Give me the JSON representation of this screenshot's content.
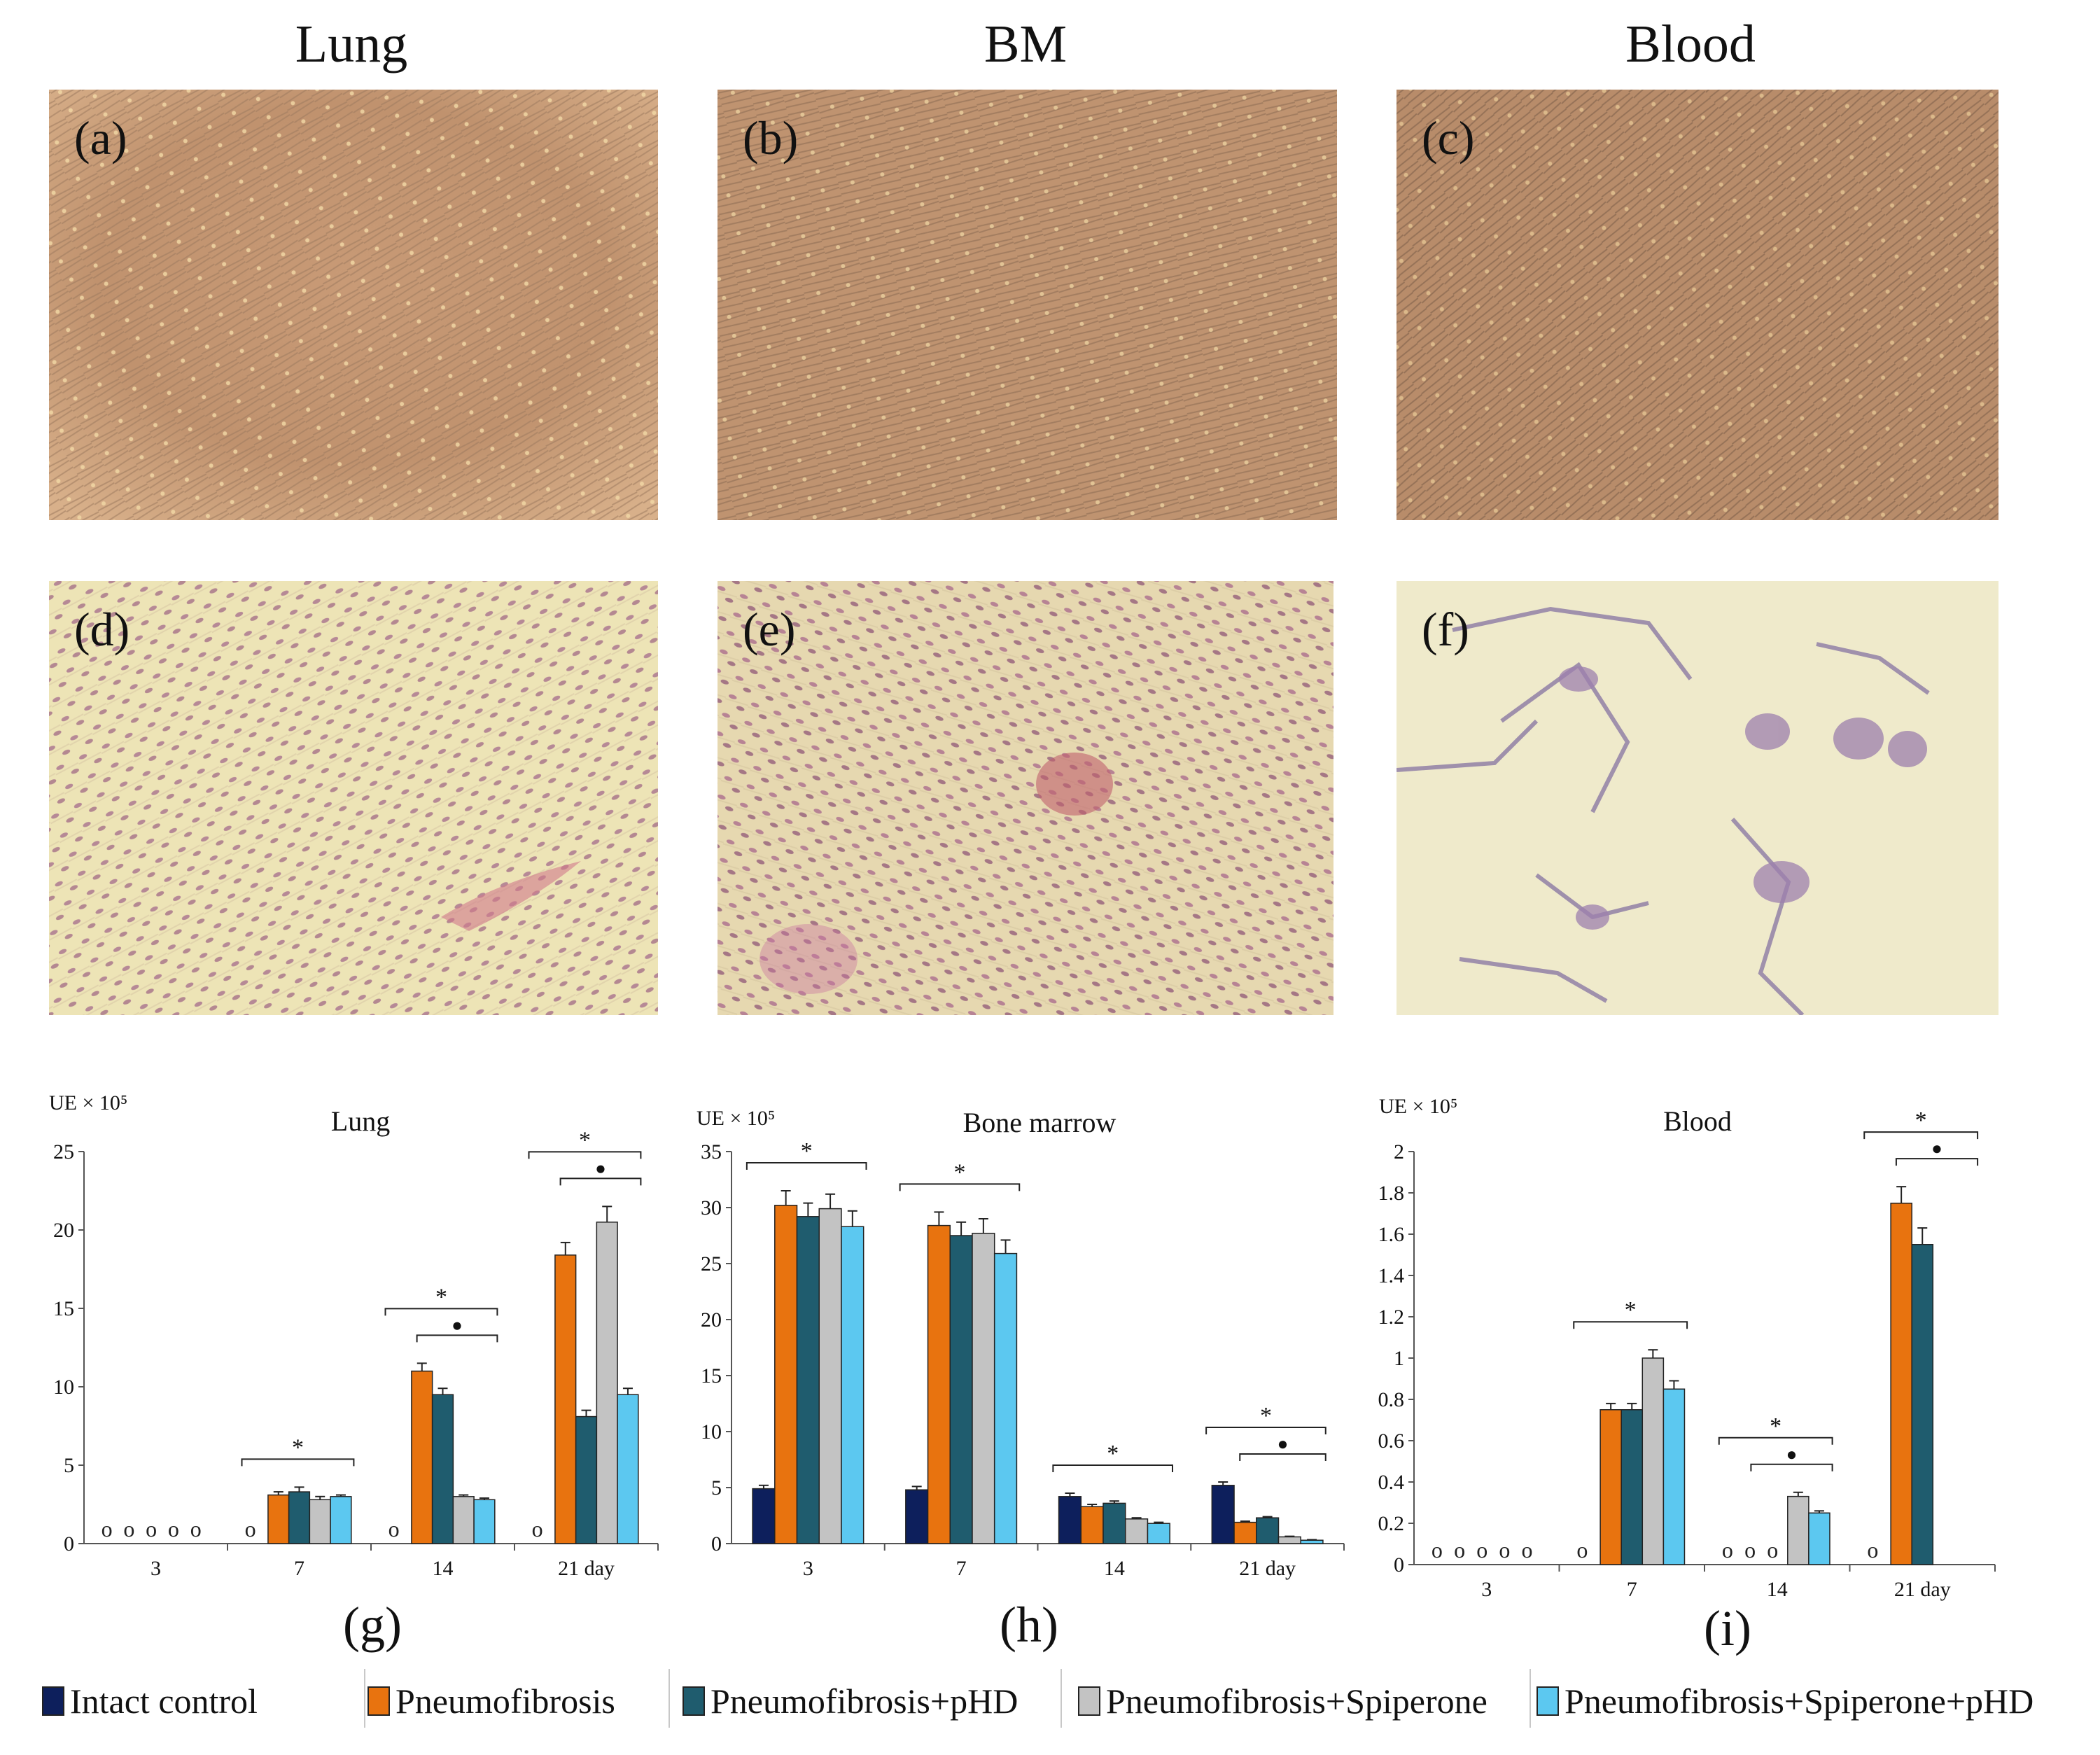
{
  "columns": [
    "Lung",
    "BM",
    "Blood"
  ],
  "photos": [
    {
      "label": "(a)",
      "stain": "phase"
    },
    {
      "label": "(b)",
      "stain": "phase"
    },
    {
      "label": "(c)",
      "stain": "phase"
    },
    {
      "label": "(d)",
      "stain": "hematoxylin"
    },
    {
      "label": "(e)",
      "stain": "hematoxylin"
    },
    {
      "label": "(f)",
      "stain": "sparse"
    }
  ],
  "colors": {
    "intact": "#0d1f5c",
    "pneumo": "#e8730f",
    "pneumo_phd": "#1f5c6e",
    "pneumo_spip": "#c3c3c3",
    "pneumo_spip_phd": "#5cc8f0"
  },
  "legend": [
    {
      "label": "Intact control",
      "color": "#0d1f5c"
    },
    {
      "label": "Pneumofibrosis",
      "color": "#e8730f"
    },
    {
      "label": "Pneumofibrosis+pHD",
      "color": "#1f5c6e"
    },
    {
      "label": "Pneumofibrosis+Spiperone",
      "color": "#c3c3c3"
    },
    {
      "label": "Pneumofibrosis+Spiperone+pHD",
      "color": "#5cc8f0"
    }
  ],
  "chart_data": [
    {
      "type": "bar",
      "panel": "(g)",
      "title": "Lung",
      "ylabel": "UE × 10⁵",
      "ylim": [
        0,
        25
      ],
      "yticks": [
        "0",
        "5",
        "10",
        "15",
        "20",
        "25"
      ],
      "categories": [
        "3",
        "7",
        "14",
        "21 day"
      ],
      "series": [
        {
          "name": "Intact control",
          "values": [
            0,
            0,
            0,
            0
          ],
          "errors": [
            0,
            0,
            0,
            0
          ]
        },
        {
          "name": "Pneumofibrosis",
          "values": [
            0,
            3.1,
            11.0,
            18.4
          ],
          "errors": [
            0,
            0.2,
            0.5,
            0.8
          ]
        },
        {
          "name": "Pneumofibrosis+pHD",
          "values": [
            0,
            3.3,
            9.5,
            8.1
          ],
          "errors": [
            0,
            0.3,
            0.4,
            0.4
          ]
        },
        {
          "name": "Pneumofibrosis+Spiperone",
          "values": [
            0,
            2.8,
            3.0,
            20.5
          ],
          "errors": [
            0,
            0.2,
            0.1,
            1.0
          ]
        },
        {
          "name": "Pneumofibrosis+Spiperone+pHD",
          "values": [
            0,
            3.0,
            2.8,
            9.5
          ],
          "errors": [
            0,
            0.1,
            0.1,
            0.4
          ]
        }
      ],
      "zero_markers": [
        [
          "o",
          "o",
          "o",
          "o",
          "o"
        ],
        [
          "o"
        ],
        [
          "o"
        ],
        [
          "o"
        ]
      ],
      "annotations": [
        {
          "group": 1,
          "symbol": "*"
        },
        {
          "group": 2,
          "symbol": "*"
        },
        {
          "group": 2,
          "symbol": "●"
        },
        {
          "group": 3,
          "symbol": "*"
        },
        {
          "group": 3,
          "symbol": "●"
        }
      ]
    },
    {
      "type": "bar",
      "panel": "(h)",
      "title": "Bone marrow",
      "ylabel": "UE × 10⁵",
      "ylim": [
        0,
        35
      ],
      "yticks": [
        "0",
        "5",
        "10",
        "15",
        "20",
        "25",
        "30",
        "35"
      ],
      "categories": [
        "3",
        "7",
        "14",
        "21 day"
      ],
      "series": [
        {
          "name": "Intact control",
          "values": [
            4.9,
            4.8,
            4.2,
            5.2
          ],
          "errors": [
            0.3,
            0.3,
            0.3,
            0.3
          ]
        },
        {
          "name": "Pneumofibrosis",
          "values": [
            30.2,
            28.4,
            3.3,
            1.9
          ],
          "errors": [
            1.3,
            1.2,
            0.2,
            0.1
          ]
        },
        {
          "name": "Pneumofibrosis+pHD",
          "values": [
            29.2,
            27.5,
            3.6,
            2.3
          ],
          "errors": [
            1.2,
            1.2,
            0.2,
            0.1
          ]
        },
        {
          "name": "Pneumofibrosis+Spiperone",
          "values": [
            29.9,
            27.7,
            2.2,
            0.6
          ],
          "errors": [
            1.3,
            1.3,
            0.1,
            0.05
          ]
        },
        {
          "name": "Pneumofibrosis+Spiperone+pHD",
          "values": [
            28.3,
            25.9,
            1.8,
            0.3
          ],
          "errors": [
            1.4,
            1.2,
            0.1,
            0.05
          ]
        }
      ],
      "zero_markers": [
        [],
        [],
        [],
        []
      ],
      "annotations": [
        {
          "group": 0,
          "symbol": "*"
        },
        {
          "group": 1,
          "symbol": "*"
        },
        {
          "group": 2,
          "symbol": "*"
        },
        {
          "group": 3,
          "symbol": "*"
        },
        {
          "group": 3,
          "symbol": "●"
        }
      ]
    },
    {
      "type": "bar",
      "panel": "(i)",
      "title": "Blood",
      "ylabel": "UE × 10⁵",
      "ylim": [
        0,
        2
      ],
      "yticks": [
        "0",
        "0.2",
        "0.4",
        "0.6",
        "0.8",
        "1",
        "1.2",
        "1.4",
        "1.6",
        "1.8",
        "2"
      ],
      "categories": [
        "3",
        "7",
        "14",
        "21 day"
      ],
      "series": [
        {
          "name": "Intact control",
          "values": [
            0,
            0,
            0,
            0
          ],
          "errors": [
            0,
            0,
            0,
            0
          ]
        },
        {
          "name": "Pneumofibrosis",
          "values": [
            0,
            0.75,
            0,
            1.75
          ],
          "errors": [
            0,
            0.03,
            0,
            0.08
          ]
        },
        {
          "name": "Pneumofibrosis+pHD",
          "values": [
            0,
            0.75,
            0,
            1.55
          ],
          "errors": [
            0,
            0.03,
            0,
            0.08
          ]
        },
        {
          "name": "Pneumofibrosis+Spiperone",
          "values": [
            0,
            1.0,
            0.33,
            null
          ],
          "errors": [
            0,
            0.04,
            0.02,
            0
          ]
        },
        {
          "name": "Pneumofibrosis+Spiperone+pHD",
          "values": [
            0,
            0.85,
            0.25,
            null
          ],
          "errors": [
            0,
            0.04,
            0.01,
            0
          ]
        }
      ],
      "zero_markers": [
        [
          "o",
          "o",
          "o",
          "o",
          "o"
        ],
        [
          "o"
        ],
        [
          "o",
          "o",
          "o"
        ],
        [
          "o"
        ]
      ],
      "annotations": [
        {
          "group": 1,
          "symbol": "*"
        },
        {
          "group": 2,
          "symbol": "*"
        },
        {
          "group": 2,
          "symbol": "●"
        },
        {
          "group": 3,
          "symbol": "*"
        },
        {
          "group": 3,
          "symbol": "●"
        }
      ]
    }
  ]
}
